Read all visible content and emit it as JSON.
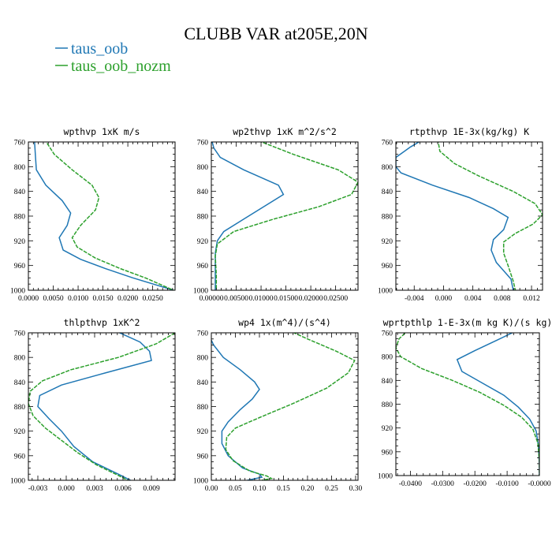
{
  "title": "CLUBB VAR at205E,20N",
  "legend": [
    {
      "label": "taus_oob",
      "color": "#1f77b4"
    },
    {
      "label": "taus_oob_nozm",
      "color": "#2ca02c"
    }
  ],
  "chart_data": [
    {
      "type": "line",
      "title": "wpthvp  1xK m/s",
      "xlim": [
        0.0,
        0.0295
      ],
      "ylim": [
        760,
        1000
      ],
      "y_inverted": true,
      "xticks": [
        0.0,
        0.005,
        0.01,
        0.015,
        0.02,
        0.025
      ],
      "xtick_labels": [
        "0.0000",
        "0.0050",
        "0.0100",
        "0.0150",
        "0.0200",
        "0.0250"
      ],
      "yticks": [
        760,
        800,
        840,
        880,
        920,
        960,
        1000
      ],
      "ytick_labels": [
        "760",
        "800",
        "840",
        "880",
        "920",
        "960",
        "1000"
      ],
      "series": [
        {
          "name": "taus_oob",
          "points": [
            [
              0.0012,
              755
            ],
            [
              0.0014,
              780
            ],
            [
              0.0016,
              805
            ],
            [
              0.0035,
              830
            ],
            [
              0.0068,
              855
            ],
            [
              0.0085,
              875
            ],
            [
              0.0078,
              895
            ],
            [
              0.0062,
              915
            ],
            [
              0.007,
              935
            ],
            [
              0.0105,
              950
            ],
            [
              0.0155,
              965
            ],
            [
              0.021,
              980
            ],
            [
              0.0292,
              1000
            ]
          ]
        },
        {
          "name": "taus_oob_nozm",
          "points": [
            [
              0.0032,
              755
            ],
            [
              0.0052,
              780
            ],
            [
              0.0088,
              805
            ],
            [
              0.0128,
              830
            ],
            [
              0.0142,
              850
            ],
            [
              0.0135,
              870
            ],
            [
              0.0105,
              895
            ],
            [
              0.0088,
              915
            ],
            [
              0.0098,
              930
            ],
            [
              0.0135,
              948
            ],
            [
              0.0185,
              965
            ],
            [
              0.0235,
              980
            ],
            [
              0.0292,
              1000
            ]
          ]
        }
      ]
    },
    {
      "type": "line",
      "title": "wp2thvp  1xK m^2/s^2",
      "xlim": [
        0.0,
        0.0295
      ],
      "ylim": [
        760,
        1000
      ],
      "y_inverted": true,
      "xticks": [
        0.0,
        0.005,
        0.01,
        0.015,
        0.02,
        0.025
      ],
      "xtick_labels": [
        "0.00000",
        "0.00500",
        "0.01000",
        "0.01500",
        "0.02000",
        "0.02500"
      ],
      "yticks": [
        760,
        800,
        840,
        880,
        920,
        960,
        1000
      ],
      "ytick_labels": [
        "760",
        "800",
        "840",
        "880",
        "920",
        "960",
        "1000"
      ],
      "series": [
        {
          "name": "taus_oob",
          "points": [
            [
              0.0,
              755
            ],
            [
              0.0005,
              770
            ],
            [
              0.0018,
              785
            ],
            [
              0.0065,
              805
            ],
            [
              0.0135,
              830
            ],
            [
              0.0145,
              845
            ],
            [
              0.0105,
              865
            ],
            [
              0.0065,
              885
            ],
            [
              0.0025,
              905
            ],
            [
              0.0012,
              920
            ],
            [
              0.0008,
              940
            ],
            [
              0.0008,
              970
            ],
            [
              0.0008,
              1000
            ]
          ]
        },
        {
          "name": "taus_oob_nozm",
          "points": [
            [
              0.0085,
              755
            ],
            [
              0.0165,
              780
            ],
            [
              0.0255,
              805
            ],
            [
              0.0295,
              825
            ],
            [
              0.0282,
              845
            ],
            [
              0.0215,
              865
            ],
            [
              0.0125,
              885
            ],
            [
              0.0045,
              905
            ],
            [
              0.0012,
              925
            ],
            [
              0.0008,
              945
            ],
            [
              0.001,
              975
            ],
            [
              0.001,
              1000
            ]
          ]
        }
      ]
    },
    {
      "type": "line",
      "title": "rtpthvp  1E-3x(kg/kg) K",
      "xlim": [
        -0.0065,
        0.0135
      ],
      "ylim": [
        760,
        1000
      ],
      "y_inverted": true,
      "xticks": [
        -0.004,
        0.0,
        0.004,
        0.008,
        0.012
      ],
      "xtick_labels": [
        "-0.004",
        "0.000",
        "0.004",
        "0.008",
        "0.012"
      ],
      "yticks": [
        760,
        800,
        840,
        880,
        920,
        960,
        1000
      ],
      "ytick_labels": [
        "760",
        "800",
        "840",
        "880",
        "920",
        "960",
        "1000"
      ],
      "series": [
        {
          "name": "taus_oob",
          "points": [
            [
              -0.0022,
              752
            ],
            [
              -0.0045,
              768
            ],
            [
              -0.0065,
              785
            ],
            [
              -0.0065,
              800
            ],
            [
              -0.0058,
              810
            ],
            [
              -0.0015,
              830
            ],
            [
              0.0035,
              850
            ],
            [
              0.0068,
              868
            ],
            [
              0.0088,
              882
            ],
            [
              0.0082,
              902
            ],
            [
              0.0068,
              918
            ],
            [
              0.0065,
              935
            ],
            [
              0.0072,
              955
            ],
            [
              0.0092,
              982
            ],
            [
              0.0095,
              1000
            ]
          ]
        },
        {
          "name": "taus_oob_nozm",
          "points": [
            [
              -0.0008,
              755
            ],
            [
              -0.0005,
              775
            ],
            [
              0.0015,
              795
            ],
            [
              0.0048,
              815
            ],
            [
              0.0095,
              840
            ],
            [
              0.0125,
              860
            ],
            [
              0.0135,
              878
            ],
            [
              0.0122,
              893
            ],
            [
              0.0098,
              908
            ],
            [
              0.0082,
              922
            ],
            [
              0.0082,
              940
            ],
            [
              0.0088,
              960
            ],
            [
              0.0095,
              985
            ],
            [
              0.0098,
              1000
            ]
          ]
        }
      ]
    },
    {
      "type": "line",
      "title": "thlpthvp  1xK^2",
      "xlim": [
        -0.004,
        0.0115
      ],
      "ylim": [
        760,
        1000
      ],
      "y_inverted": true,
      "xticks": [
        -0.003,
        0.0,
        0.003,
        0.006,
        0.009
      ],
      "xtick_labels": [
        "-0.003",
        "0.000",
        "0.003",
        "0.006",
        "0.009"
      ],
      "yticks": [
        760,
        800,
        840,
        880,
        920,
        960,
        1000
      ],
      "ytick_labels": [
        "760",
        "800",
        "840",
        "880",
        "920",
        "960",
        "1000"
      ],
      "series": [
        {
          "name": "taus_oob",
          "points": [
            [
              0.0045,
              752
            ],
            [
              0.0078,
              775
            ],
            [
              0.0088,
              790
            ],
            [
              0.009,
              805
            ],
            [
              0.0042,
              825
            ],
            [
              -0.0005,
              845
            ],
            [
              -0.0028,
              862
            ],
            [
              -0.003,
              880
            ],
            [
              -0.0018,
              900
            ],
            [
              -0.0005,
              920
            ],
            [
              0.0008,
              945
            ],
            [
              0.0028,
              970
            ],
            [
              0.0055,
              990
            ],
            [
              0.0068,
              1000
            ]
          ]
        },
        {
          "name": "taus_oob_nozm",
          "points": [
            [
              0.0115,
              760
            ],
            [
              0.0095,
              778
            ],
            [
              0.0055,
              800
            ],
            [
              0.0005,
              820
            ],
            [
              -0.0025,
              838
            ],
            [
              -0.0038,
              855
            ],
            [
              -0.004,
              875
            ],
            [
              -0.0035,
              895
            ],
            [
              -0.0022,
              915
            ],
            [
              -0.0005,
              935
            ],
            [
              0.0012,
              955
            ],
            [
              0.0032,
              975
            ],
            [
              0.0055,
              992
            ],
            [
              0.0065,
              1000
            ]
          ]
        }
      ]
    },
    {
      "type": "line",
      "title": "wp4  1x(m^4)/(s^4)",
      "xlim": [
        0.0,
        0.305
      ],
      "ylim": [
        760,
        1000
      ],
      "y_inverted": true,
      "xticks": [
        0.0,
        0.05,
        0.1,
        0.15,
        0.2,
        0.25,
        0.3
      ],
      "xtick_labels": [
        "0.00",
        "0.05",
        "0.10",
        "0.15",
        "0.20",
        "0.25",
        "0.30"
      ],
      "yticks": [
        760,
        800,
        840,
        880,
        920,
        960,
        1000
      ],
      "ytick_labels": [
        "760",
        "800",
        "840",
        "880",
        "920",
        "960",
        "1000"
      ],
      "series": [
        {
          "name": "taus_oob",
          "points": [
            [
              0.0,
              772
            ],
            [
              0.005,
              780
            ],
            [
              0.025,
              800
            ],
            [
              0.06,
              820
            ],
            [
              0.09,
              840
            ],
            [
              0.1,
              852
            ],
            [
              0.085,
              868
            ],
            [
              0.06,
              885
            ],
            [
              0.035,
              905
            ],
            [
              0.022,
              920
            ],
            [
              0.022,
              940
            ],
            [
              0.035,
              960
            ],
            [
              0.065,
              980
            ],
            [
              0.1,
              990
            ],
            [
              0.105,
              995
            ],
            [
              0.075,
              1000
            ]
          ]
        },
        {
          "name": "taus_oob_nozm",
          "points": [
            [
              0.15,
              752
            ],
            [
              0.2,
              770
            ],
            [
              0.26,
              790
            ],
            [
              0.298,
              805
            ],
            [
              0.285,
              825
            ],
            [
              0.24,
              850
            ],
            [
              0.17,
              875
            ],
            [
              0.1,
              898
            ],
            [
              0.05,
              915
            ],
            [
              0.032,
              930
            ],
            [
              0.03,
              950
            ],
            [
              0.045,
              968
            ],
            [
              0.08,
              985
            ],
            [
              0.115,
              993
            ],
            [
              0.125,
              997
            ],
            [
              0.105,
              1000
            ]
          ]
        }
      ]
    },
    {
      "type": "line",
      "title": "wprtpthlp  1-E-3x(m kg K)/(s kg)",
      "xlim": [
        -0.0445,
        0.0
      ],
      "ylim": [
        760,
        1000
      ],
      "y_inverted": true,
      "xticks": [
        -0.04,
        -0.03,
        -0.02,
        -0.01,
        0.0
      ],
      "xtick_labels": [
        "-0.0400",
        "-0.0300",
        "-0.0200",
        "-0.0100",
        "-0.0000"
      ],
      "yticks": [
        760,
        800,
        840,
        880,
        920,
        960,
        1000
      ],
      "ytick_labels": [
        "760",
        "800",
        "840",
        "880",
        "920",
        "960",
        "1000"
      ],
      "series": [
        {
          "name": "taus_oob",
          "points": [
            [
              -0.0065,
              755
            ],
            [
              -0.013,
              772
            ],
            [
              -0.02,
              790
            ],
            [
              -0.0255,
              805
            ],
            [
              -0.024,
              825
            ],
            [
              -0.0175,
              845
            ],
            [
              -0.011,
              865
            ],
            [
              -0.0065,
              885
            ],
            [
              -0.003,
              905
            ],
            [
              -0.001,
              925
            ],
            [
              -0.0003,
              950
            ],
            [
              0.0,
              980
            ],
            [
              0.0,
              1000
            ]
          ]
        },
        {
          "name": "taus_oob_nozm",
          "points": [
            [
              -0.0405,
              755
            ],
            [
              -0.0435,
              770
            ],
            [
              -0.0445,
              785
            ],
            [
              -0.043,
              800
            ],
            [
              -0.0365,
              820
            ],
            [
              -0.027,
              840
            ],
            [
              -0.0185,
              860
            ],
            [
              -0.011,
              882
            ],
            [
              -0.0055,
              902
            ],
            [
              -0.002,
              922
            ],
            [
              -0.0005,
              945
            ],
            [
              0.0,
              975
            ],
            [
              0.0,
              1000
            ]
          ]
        }
      ]
    }
  ]
}
